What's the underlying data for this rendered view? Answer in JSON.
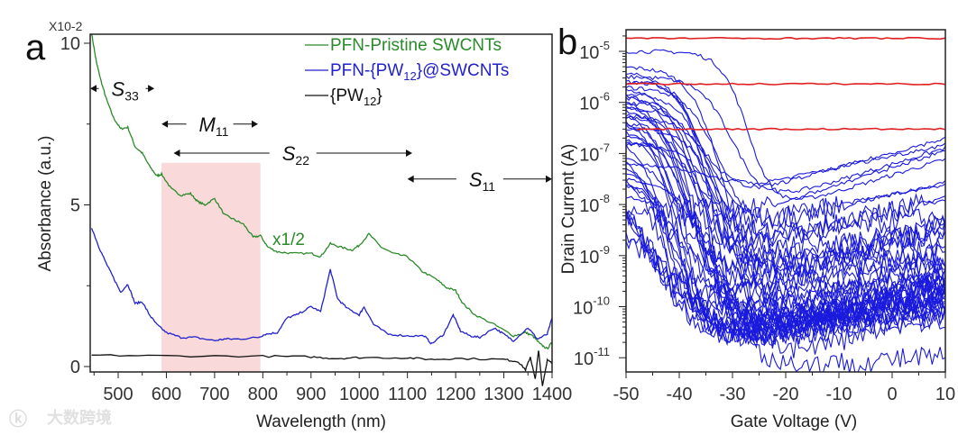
{
  "chart_data": [
    {
      "panel": "a",
      "type": "line",
      "xlabel": "Wavelength (nm)",
      "ylabel": "Absorbance (a.u.)",
      "y_multiplier": "X10-2",
      "xlim": [
        442,
        1400
      ],
      "ylim": [
        -0.2,
        10.5
      ],
      "xticks": [
        500,
        600,
        700,
        800,
        900,
        1000,
        1100,
        1200,
        1300,
        1400
      ],
      "yticks": [
        0,
        5,
        10
      ],
      "legend_position": "top-right",
      "series": [
        {
          "name": "PFN-Pristine SWCNTs",
          "color": "#2a8a2a",
          "scale_note": "x1/2",
          "x": [
            445,
            455,
            465,
            475,
            490,
            505,
            520,
            535,
            550,
            565,
            580,
            590,
            610,
            630,
            650,
            665,
            680,
            700,
            720,
            740,
            760,
            780,
            795,
            810,
            830,
            860,
            900,
            920,
            940,
            960,
            985,
            1000,
            1020,
            1045,
            1070,
            1100,
            1130,
            1160,
            1180,
            1200,
            1215,
            1240,
            1280,
            1320,
            1345,
            1360,
            1375,
            1390,
            1400
          ],
          "y": [
            10.3,
            9.4,
            8.8,
            8.3,
            7.7,
            7.35,
            7.4,
            6.8,
            6.6,
            6.2,
            5.9,
            5.95,
            5.5,
            5.3,
            5.35,
            5.1,
            5.0,
            5.2,
            4.7,
            4.55,
            4.4,
            4.0,
            4.05,
            3.7,
            3.55,
            3.5,
            3.5,
            3.4,
            3.8,
            3.7,
            3.6,
            3.75,
            4.1,
            3.7,
            3.5,
            3.4,
            2.95,
            2.7,
            2.45,
            2.35,
            1.95,
            1.6,
            1.3,
            0.95,
            1.05,
            0.95,
            0.7,
            0.55,
            0.75
          ]
        },
        {
          "name": "PFN-{PW12}@SWCNTs",
          "color": "#2222cc",
          "x": [
            445,
            460,
            475,
            490,
            505,
            520,
            535,
            550,
            565,
            580,
            600,
            630,
            660,
            700,
            720,
            750,
            790,
            805,
            830,
            850,
            870,
            900,
            920,
            940,
            955,
            975,
            1000,
            1010,
            1030,
            1060,
            1100,
            1135,
            1150,
            1175,
            1195,
            1210,
            1230,
            1250,
            1280,
            1300,
            1320,
            1350,
            1370,
            1390,
            1400
          ],
          "y": [
            4.3,
            3.7,
            3.2,
            2.75,
            2.3,
            2.55,
            1.95,
            2.0,
            1.6,
            1.3,
            1.05,
            0.9,
            0.9,
            0.8,
            0.85,
            0.85,
            0.9,
            1.0,
            1.05,
            1.5,
            1.6,
            1.85,
            1.7,
            3.0,
            2.1,
            1.8,
            1.6,
            1.85,
            1.3,
            1.0,
            0.95,
            0.95,
            0.7,
            1.0,
            1.6,
            1.1,
            0.95,
            0.9,
            1.2,
            1.0,
            0.8,
            1.2,
            0.85,
            1.0,
            1.5
          ]
        },
        {
          "name": "{PW12}",
          "color": "#111111",
          "x": [
            445,
            600,
            800,
            900,
            950,
            1000,
            1100,
            1150,
            1200,
            1300,
            1330,
            1345,
            1355,
            1365,
            1372,
            1380,
            1390,
            1400
          ],
          "y": [
            0.35,
            0.33,
            0.32,
            0.3,
            0.25,
            0.28,
            0.27,
            0.22,
            0.25,
            0.22,
            0.15,
            -0.1,
            0.3,
            -0.4,
            0.5,
            -0.6,
            0.2,
            0.1
          ]
        }
      ],
      "shaded_region": {
        "x": [
          590,
          795
        ],
        "y_top": 6.3,
        "color": "#f9d9d9"
      },
      "annotations": {
        "s33": {
          "label": "S",
          "sub": "33",
          "x_range": [
            442,
            575
          ],
          "y": 8.6
        },
        "m11": {
          "label": "M",
          "sub": "11",
          "x_range": [
            590,
            790
          ],
          "y": 7.5
        },
        "s22": {
          "label": "S",
          "sub": "22",
          "x_range": [
            615,
            1110
          ],
          "y": 6.6
        },
        "s11": {
          "label": "S",
          "sub": "11",
          "x_range": [
            1100,
            1400
          ],
          "y": 5.8
        },
        "scale": "x1/2"
      },
      "legend": [
        {
          "pre": "PFN-Pristine SWCNTs",
          "sub": "",
          "post": ""
        },
        {
          "pre": "PFN-{PW",
          "sub": "12",
          "post": "}@SWCNTs"
        },
        {
          "pre": "{PW",
          "sub": "12",
          "post": "}"
        }
      ]
    },
    {
      "panel": "b",
      "type": "line",
      "xlabel": "Gate Voltage (V)",
      "ylabel": "Drain Current (A)",
      "xlim": [
        -50,
        10
      ],
      "ylim_log10": [
        -11.3,
        -4.6
      ],
      "xticks": [
        -50,
        -40,
        -30,
        -20,
        -10,
        0,
        10
      ],
      "yticks_exp": [
        -5,
        -6,
        -7,
        -8,
        -9,
        -10,
        -11
      ],
      "tick_base": "10",
      "red_series": {
        "color": "#e02020",
        "levels_A": [
          1.8e-05,
          2.3e-06,
          3e-07
        ],
        "start_V": [
          -50,
          -50,
          -48
        ]
      },
      "blue_series": {
        "color": "#1a1add",
        "count": 46,
        "note": "transfer curves, each [log10 Ion, log10 Ioff, Vth (V)]",
        "curves": [
          [
            -5.0,
            -8.2,
            -27
          ],
          [
            -5.3,
            -10.4,
            -31
          ],
          [
            -5.4,
            -10.2,
            -33
          ],
          [
            -5.5,
            -8.0,
            -30
          ],
          [
            -5.6,
            -10.5,
            -34
          ],
          [
            -5.6,
            -9.3,
            -35
          ],
          [
            -5.7,
            -10.4,
            -36
          ],
          [
            -5.7,
            -8.8,
            -32
          ],
          [
            -5.8,
            -10.6,
            -37
          ],
          [
            -5.8,
            -9.5,
            -33
          ],
          [
            -5.9,
            -10.3,
            -38
          ],
          [
            -5.9,
            -8.6,
            -36
          ],
          [
            -6.0,
            -10.5,
            -35
          ],
          [
            -6.0,
            -9.8,
            -39
          ],
          [
            -6.1,
            -10.4,
            -37
          ],
          [
            -6.1,
            -8.4,
            -34
          ],
          [
            -6.2,
            -10.6,
            -40
          ],
          [
            -6.2,
            -9.2,
            -36
          ],
          [
            -6.3,
            -10.2,
            -38
          ],
          [
            -6.3,
            -7.7,
            -35
          ],
          [
            -6.4,
            -10.5,
            -41
          ],
          [
            -6.4,
            -9.0,
            -37
          ],
          [
            -6.5,
            -10.3,
            -39
          ],
          [
            -6.5,
            -8.9,
            -33
          ],
          [
            -6.6,
            -10.6,
            -42
          ],
          [
            -6.6,
            -9.6,
            -38
          ],
          [
            -6.7,
            -10.4,
            -40
          ],
          [
            -6.8,
            -8.3,
            -37
          ],
          [
            -6.9,
            -10.5,
            -43
          ],
          [
            -7.0,
            -9.4,
            -39
          ],
          [
            -7.1,
            -10.6,
            -41
          ],
          [
            -7.2,
            -7.6,
            -36
          ],
          [
            -7.3,
            -10.3,
            -42
          ],
          [
            -7.4,
            -9.9,
            -44
          ],
          [
            -7.5,
            -10.5,
            -40
          ],
          [
            -7.6,
            -9.1,
            -43
          ],
          [
            -7.7,
            -10.2,
            -45
          ],
          [
            -7.8,
            -8.7,
            -42
          ],
          [
            -7.9,
            -10.4,
            -44
          ],
          [
            -8.0,
            -9.7,
            -46
          ],
          [
            -8.0,
            -10.6,
            -43
          ],
          [
            -8.1,
            -8.1,
            -40
          ],
          [
            -8.2,
            -10.0,
            -45
          ],
          [
            -8.3,
            -9.5,
            -47
          ],
          [
            -7.5,
            -11.2,
            -33
          ],
          [
            -6.8,
            -11.1,
            -30
          ]
        ]
      }
    }
  ],
  "labels": {
    "panel_a": "a",
    "panel_b": "b",
    "watermark": "大数跨境"
  }
}
